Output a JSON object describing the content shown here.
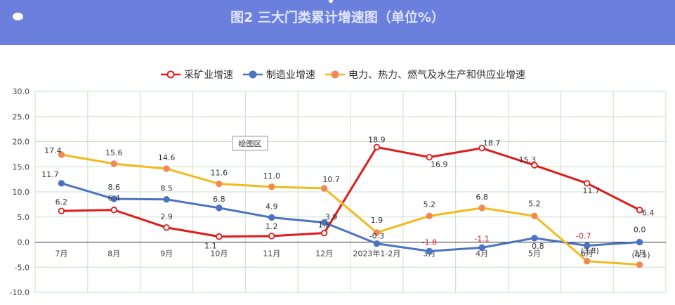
{
  "header": {
    "title": "图2   三大门类累计增速图（单位%）"
  },
  "tooltip": "绘图区",
  "colors": {
    "mining": "#e01b1b",
    "manufacturing": "#4c73c2",
    "utilities": "#f2ba1e",
    "utilities_marker": "#f08a52",
    "banner": "#6b7fdc"
  },
  "chart_data": {
    "type": "line",
    "title": "图2   三大门类累计增速图（单位%）",
    "categories": [
      "7月",
      "8月",
      "9月",
      "10月",
      "11月",
      "12月",
      "2023年1-2月",
      "3月",
      "4月",
      "5月",
      "6月",
      "7月"
    ],
    "ylim": [
      -10,
      30
    ],
    "yticks": [
      "30.0",
      "25.0",
      "20.0",
      "15.0",
      "10.0",
      "5.0",
      "0.0",
      "-5.0",
      "-10.0"
    ],
    "grid": true,
    "legend_position": "top",
    "series": [
      {
        "name": "采矿业增速",
        "values": [
          6.2,
          6.4,
          2.9,
          1.1,
          1.2,
          1.8,
          18.9,
          16.9,
          18.7,
          15.3,
          11.7,
          6.4
        ],
        "labels": [
          "6.2",
          "6.4",
          "2.9",
          "1.1",
          "1.2",
          "1.8",
          "18.9",
          "16.9",
          "18.7",
          "15.3",
          "11.7",
          "6.4"
        ]
      },
      {
        "name": "制造业增速",
        "values": [
          11.7,
          8.6,
          8.5,
          6.8,
          4.9,
          3.9,
          -0.3,
          -1.8,
          -1.1,
          0.8,
          -0.7,
          0.0
        ],
        "labels": [
          "11.7",
          "8.6",
          "8.5",
          "6.8",
          "4.9",
          "3.9",
          "-0.3",
          "-1.8",
          "-1.1",
          "0.8",
          "-0.7",
          "0.0"
        ]
      },
      {
        "name": "电力、热力、燃气及水生产和供应业增速",
        "values": [
          17.4,
          15.6,
          14.6,
          11.6,
          11.0,
          10.7,
          1.9,
          5.2,
          6.8,
          5.2,
          -3.8,
          -4.5
        ],
        "labels": [
          "17.4",
          "15.6",
          "14.6",
          "11.6",
          "11.0",
          "10.7",
          "1.9",
          "5.2",
          "6.8",
          "5.2",
          "(3.8)",
          "(4.5)"
        ]
      }
    ]
  }
}
